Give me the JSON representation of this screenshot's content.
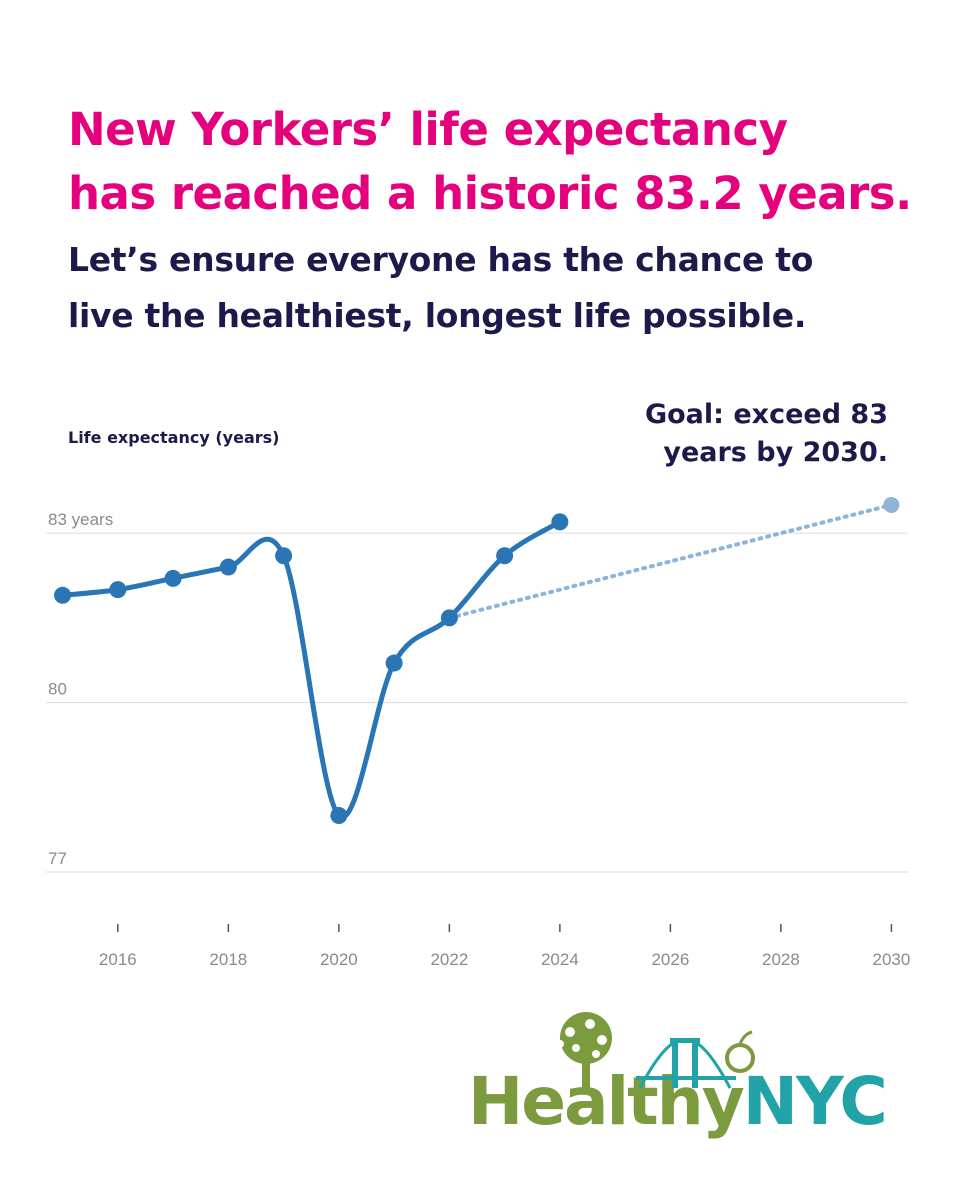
{
  "colors": {
    "headline": "#e5007e",
    "navy": "#1b1a4a",
    "line": "#2a75b3",
    "projection": "#8eb4d9",
    "grid": "#dcdcdc",
    "logo_green": "#7c9a3e",
    "logo_teal": "#22a3a7"
  },
  "headline": {
    "line1": "New Yorkers’ life expectancy",
    "line2": "has reached a historic 83.2 years."
  },
  "subhead": {
    "line1": "Let’s ensure everyone has the chance to",
    "line2": "live the healthiest, longest life possible."
  },
  "chart_data": {
    "type": "line",
    "title": "New Yorkers’ life expectancy has reached a historic 83.2 years.",
    "ylabel": "Life expectancy (years)",
    "xlabel": "",
    "ylim": [
      77,
      83.8
    ],
    "xlim": [
      2014.7,
      2030.3
    ],
    "yticks": [
      {
        "value": 83,
        "label": "83 years"
      },
      {
        "value": 80,
        "label": "80"
      },
      {
        "value": 77,
        "label": "77"
      }
    ],
    "xticks": [
      2016,
      2018,
      2020,
      2022,
      2024,
      2026,
      2028,
      2030
    ],
    "grid": true,
    "series": [
      {
        "name": "Life expectancy",
        "style": "solid",
        "x": [
          2015,
          2016,
          2017,
          2018,
          2019,
          2020,
          2021,
          2022,
          2023,
          2024
        ],
        "y": [
          81.9,
          82.0,
          82.2,
          82.4,
          82.6,
          78.0,
          80.7,
          81.5,
          82.6,
          83.2
        ]
      },
      {
        "name": "Goal projection",
        "style": "dotted",
        "x": [
          2022,
          2030
        ],
        "y": [
          81.5,
          83.5
        ]
      }
    ],
    "annotations": [
      {
        "text_line1": "Goal: exceed 83",
        "text_line2": "years by 2030.",
        "position": "top-right"
      }
    ]
  },
  "logo": {
    "part1": "Healthy",
    "part2": "NYC"
  }
}
